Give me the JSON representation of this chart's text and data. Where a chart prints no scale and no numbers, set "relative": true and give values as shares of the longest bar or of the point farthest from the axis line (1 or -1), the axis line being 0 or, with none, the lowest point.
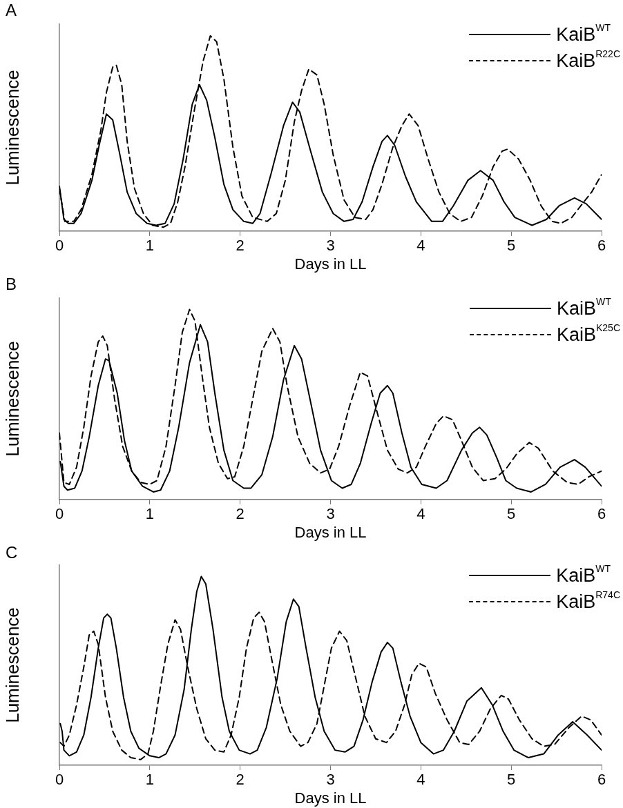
{
  "chart_data": [
    {
      "type": "line",
      "title": "A",
      "xlabel": "Days in LL",
      "ylabel": "Luminescence",
      "relative": true,
      "xlim": [
        0,
        6
      ],
      "xticks": [
        0,
        1,
        2,
        3,
        4,
        5,
        6
      ],
      "grid": false,
      "legend": "top right",
      "marker": "none",
      "series": [
        {
          "name": "KaiB$^{WT}$",
          "color": "#000000",
          "line_style": "solid",
          "x": [
            0,
            0.05,
            0.1,
            0.16,
            0.24,
            0.36,
            0.44,
            0.52,
            0.59,
            0.67,
            0.75,
            0.85,
            0.97,
            1.07,
            1.17,
            1.27,
            1.37,
            1.47,
            1.55,
            1.63,
            1.72,
            1.82,
            1.92,
            2.04,
            2.14,
            2.22,
            2.34,
            2.48,
            2.58,
            2.66,
            2.78,
            2.91,
            3.03,
            3.15,
            3.25,
            3.35,
            3.47,
            3.57,
            3.63,
            3.71,
            3.83,
            3.95,
            4.12,
            4.24,
            4.36,
            4.52,
            4.66,
            4.8,
            4.92,
            5.04,
            5.23,
            5.39,
            5.53,
            5.7,
            5.83,
            6
          ],
          "values": [
            0.23,
            0.06,
            0.04,
            0.04,
            0.09,
            0.26,
            0.44,
            0.6,
            0.57,
            0.39,
            0.2,
            0.09,
            0.04,
            0.03,
            0.04,
            0.14,
            0.37,
            0.65,
            0.75,
            0.67,
            0.48,
            0.24,
            0.11,
            0.05,
            0.04,
            0.09,
            0.29,
            0.54,
            0.66,
            0.61,
            0.41,
            0.2,
            0.09,
            0.05,
            0.06,
            0.15,
            0.33,
            0.46,
            0.49,
            0.44,
            0.28,
            0.15,
            0.05,
            0.05,
            0.13,
            0.26,
            0.31,
            0.26,
            0.15,
            0.07,
            0.03,
            0.06,
            0.13,
            0.17,
            0.14,
            0.06
          ]
        },
        {
          "name": "KaiB$^{R22C}$",
          "color": "#000000",
          "line_style": "dashed",
          "x": [
            0,
            0.06,
            0.16,
            0.24,
            0.36,
            0.46,
            0.52,
            0.59,
            0.63,
            0.69,
            0.75,
            0.83,
            0.93,
            1.03,
            1.15,
            1.23,
            1.31,
            1.39,
            1.49,
            1.59,
            1.67,
            1.74,
            1.82,
            1.92,
            2.02,
            2.14,
            2.3,
            2.4,
            2.5,
            2.6,
            2.68,
            2.76,
            2.85,
            2.93,
            3.03,
            3.15,
            3.27,
            3.39,
            3.47,
            3.57,
            3.69,
            3.79,
            3.87,
            3.97,
            4.08,
            4.2,
            4.32,
            4.44,
            4.56,
            4.68,
            4.8,
            4.9,
            4.96,
            5.08,
            5.21,
            5.33,
            5.45,
            5.55,
            5.67,
            5.77,
            5.89,
            6
          ],
          "values": [
            0.22,
            0.05,
            0.05,
            0.11,
            0.29,
            0.52,
            0.71,
            0.84,
            0.85,
            0.75,
            0.46,
            0.22,
            0.09,
            0.03,
            0.02,
            0.04,
            0.15,
            0.33,
            0.61,
            0.87,
            1,
            0.97,
            0.78,
            0.43,
            0.18,
            0.07,
            0.05,
            0.09,
            0.26,
            0.56,
            0.72,
            0.83,
            0.8,
            0.65,
            0.39,
            0.16,
            0.07,
            0.06,
            0.11,
            0.24,
            0.43,
            0.54,
            0.6,
            0.54,
            0.37,
            0.2,
            0.09,
            0.05,
            0.07,
            0.18,
            0.33,
            0.41,
            0.42,
            0.37,
            0.26,
            0.13,
            0.05,
            0.04,
            0.07,
            0.13,
            0.2,
            0.29
          ]
        }
      ]
    },
    {
      "type": "line",
      "title": "B",
      "xlabel": "Days in LL",
      "ylabel": "Luminescence",
      "relative": true,
      "xlim": [
        0,
        6
      ],
      "xticks": [
        0,
        1,
        2,
        3,
        4,
        5,
        6
      ],
      "grid": false,
      "legend": "top right",
      "marker": "none",
      "series": [
        {
          "name": "KaiB$^{WT}$",
          "color": "#000000",
          "line_style": "solid",
          "x": [
            0.01,
            0.05,
            0.09,
            0.17,
            0.25,
            0.33,
            0.43,
            0.51,
            0.55,
            0.64,
            0.72,
            0.8,
            0.92,
            1.04,
            1.12,
            1.22,
            1.32,
            1.44,
            1.56,
            1.64,
            1.72,
            1.82,
            1.92,
            2.04,
            2.12,
            2.24,
            2.36,
            2.48,
            2.6,
            2.68,
            2.79,
            2.89,
            3.01,
            3.13,
            3.23,
            3.33,
            3.45,
            3.55,
            3.63,
            3.69,
            3.79,
            3.89,
            4.01,
            4.17,
            4.29,
            4.45,
            4.57,
            4.65,
            4.73,
            4.84,
            4.94,
            5.06,
            5.22,
            5.38,
            5.54,
            5.7,
            5.82,
            6
          ],
          "values": [
            0.2,
            0.07,
            0.05,
            0.06,
            0.15,
            0.33,
            0.6,
            0.74,
            0.73,
            0.56,
            0.31,
            0.15,
            0.07,
            0.04,
            0.05,
            0.15,
            0.38,
            0.72,
            0.92,
            0.83,
            0.56,
            0.26,
            0.1,
            0.06,
            0.06,
            0.13,
            0.33,
            0.63,
            0.81,
            0.74,
            0.49,
            0.26,
            0.1,
            0.06,
            0.08,
            0.19,
            0.4,
            0.56,
            0.6,
            0.56,
            0.35,
            0.17,
            0.08,
            0.06,
            0.1,
            0.26,
            0.35,
            0.38,
            0.34,
            0.22,
            0.1,
            0.06,
            0.04,
            0.08,
            0.17,
            0.21,
            0.17,
            0.07
          ]
        },
        {
          "name": "KaiB$^{K25C}$",
          "color": "#000000",
          "line_style": "dashed",
          "x": [
            0,
            0.05,
            0.11,
            0.19,
            0.27,
            0.35,
            0.43,
            0.48,
            0.53,
            0.61,
            0.7,
            0.8,
            0.9,
            1,
            1.08,
            1.18,
            1.28,
            1.36,
            1.44,
            1.5,
            1.58,
            1.66,
            1.76,
            1.86,
            1.94,
            2.04,
            2.14,
            2.24,
            2.36,
            2.44,
            2.52,
            2.64,
            2.77,
            2.89,
            2.99,
            3.09,
            3.21,
            3.33,
            3.41,
            3.51,
            3.63,
            3.75,
            3.85,
            3.95,
            4.05,
            4.17,
            4.25,
            4.35,
            4.45,
            4.57,
            4.69,
            4.82,
            4.94,
            5.06,
            5.2,
            5.3,
            5.46,
            5.62,
            5.74,
            5.86,
            6
          ],
          "values": [
            0.35,
            0.09,
            0.08,
            0.17,
            0.38,
            0.65,
            0.83,
            0.86,
            0.81,
            0.53,
            0.28,
            0.15,
            0.09,
            0.08,
            0.1,
            0.28,
            0.6,
            0.88,
            1,
            0.94,
            0.65,
            0.38,
            0.19,
            0.11,
            0.12,
            0.28,
            0.53,
            0.78,
            0.9,
            0.83,
            0.6,
            0.33,
            0.19,
            0.14,
            0.16,
            0.28,
            0.49,
            0.67,
            0.65,
            0.47,
            0.26,
            0.16,
            0.14,
            0.17,
            0.28,
            0.4,
            0.44,
            0.42,
            0.31,
            0.17,
            0.1,
            0.11,
            0.16,
            0.24,
            0.3,
            0.27,
            0.15,
            0.09,
            0.08,
            0.12,
            0.15
          ]
        }
      ]
    },
    {
      "type": "line",
      "title": "C",
      "xlabel": "Days in LL",
      "ylabel": "Luminescence",
      "relative": true,
      "xlim": [
        0,
        6
      ],
      "xticks": [
        0,
        1,
        2,
        3,
        4,
        5,
        6
      ],
      "grid": false,
      "legend": "top right",
      "marker": "none",
      "series": [
        {
          "name": "KaiB$^{WT}$",
          "color": "#000000",
          "line_style": "solid",
          "x": [
            0.01,
            0.03,
            0.05,
            0.11,
            0.19,
            0.27,
            0.35,
            0.43,
            0.49,
            0.53,
            0.57,
            0.63,
            0.71,
            0.79,
            0.88,
            1,
            1.1,
            1.18,
            1.28,
            1.38,
            1.46,
            1.52,
            1.57,
            1.62,
            1.7,
            1.8,
            1.88,
            1.99,
            2.11,
            2.19,
            2.29,
            2.41,
            2.51,
            2.59,
            2.65,
            2.73,
            2.83,
            2.93,
            3.05,
            3.16,
            3.26,
            3.36,
            3.46,
            3.56,
            3.63,
            3.69,
            3.78,
            3.88,
            4,
            4.14,
            4.25,
            4.37,
            4.51,
            4.67,
            4.79,
            4.91,
            5.03,
            5.19,
            5.36,
            5.52,
            5.68,
            5.84,
            6
          ],
          "values": [
            0.22,
            0.18,
            0.08,
            0.05,
            0.07,
            0.16,
            0.36,
            0.62,
            0.78,
            0.8,
            0.78,
            0.62,
            0.36,
            0.18,
            0.09,
            0.05,
            0.04,
            0.06,
            0.16,
            0.4,
            0.72,
            0.92,
            1,
            0.96,
            0.72,
            0.36,
            0.18,
            0.08,
            0.06,
            0.08,
            0.2,
            0.46,
            0.76,
            0.88,
            0.84,
            0.62,
            0.36,
            0.18,
            0.08,
            0.07,
            0.1,
            0.24,
            0.44,
            0.6,
            0.65,
            0.62,
            0.44,
            0.26,
            0.12,
            0.06,
            0.08,
            0.18,
            0.34,
            0.41,
            0.32,
            0.18,
            0.08,
            0.04,
            0.06,
            0.16,
            0.23,
            0.16,
            0.08
          ]
        },
        {
          "name": "KaiB$^{R74C}$",
          "color": "#000000",
          "line_style": "dashed",
          "x": [
            0.01,
            0.05,
            0.11,
            0.19,
            0.27,
            0.33,
            0.38,
            0.43,
            0.51,
            0.59,
            0.69,
            0.79,
            0.9,
            0.98,
            1.04,
            1.12,
            1.2,
            1.28,
            1.34,
            1.42,
            1.52,
            1.62,
            1.72,
            1.82,
            1.9,
            1.99,
            2.07,
            2.15,
            2.21,
            2.27,
            2.35,
            2.45,
            2.55,
            2.67,
            2.75,
            2.85,
            2.93,
            3.01,
            3.1,
            3.18,
            3.28,
            3.38,
            3.5,
            3.62,
            3.72,
            3.82,
            3.9,
            3.98,
            4.06,
            4.16,
            4.29,
            4.43,
            4.53,
            4.65,
            4.77,
            4.89,
            4.97,
            5.09,
            5.23,
            5.36,
            5.48,
            5.64,
            5.78,
            5.88,
            6
          ],
          "values": [
            0.12,
            0.1,
            0.16,
            0.32,
            0.52,
            0.69,
            0.71,
            0.64,
            0.36,
            0.18,
            0.08,
            0.04,
            0.03,
            0.06,
            0.18,
            0.42,
            0.64,
            0.77,
            0.72,
            0.52,
            0.3,
            0.14,
            0.08,
            0.07,
            0.16,
            0.36,
            0.62,
            0.78,
            0.81,
            0.76,
            0.56,
            0.32,
            0.18,
            0.1,
            0.12,
            0.22,
            0.42,
            0.62,
            0.71,
            0.66,
            0.46,
            0.26,
            0.14,
            0.12,
            0.18,
            0.32,
            0.48,
            0.54,
            0.52,
            0.38,
            0.24,
            0.12,
            0.11,
            0.18,
            0.3,
            0.37,
            0.35,
            0.24,
            0.14,
            0.1,
            0.11,
            0.2,
            0.26,
            0.24,
            0.16
          ]
        }
      ]
    }
  ]
}
